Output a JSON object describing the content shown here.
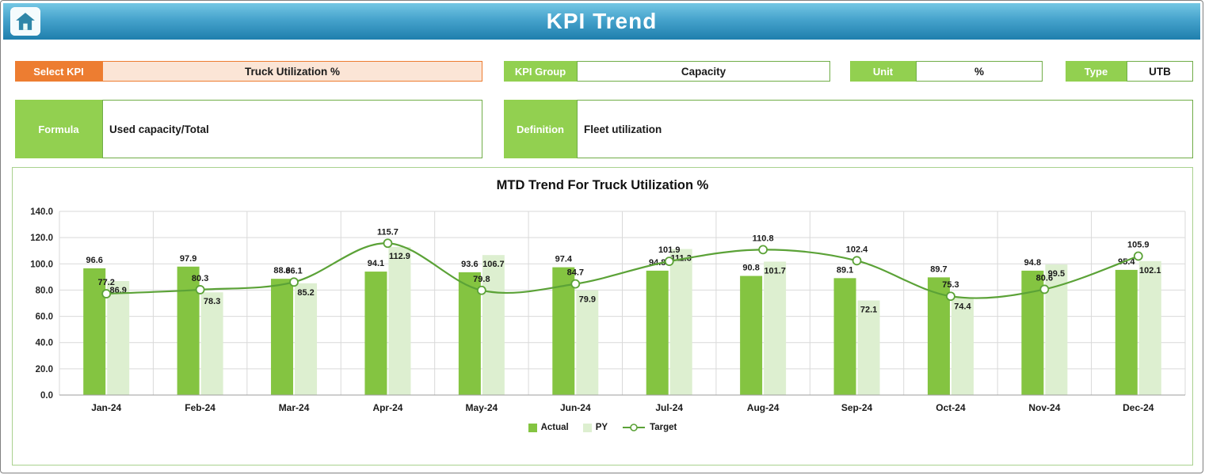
{
  "header": {
    "title": "KPI Trend"
  },
  "fields": {
    "select_kpi": {
      "label": "Select KPI",
      "value": "Truck Utilization %"
    },
    "kpi_group": {
      "label": "KPI Group",
      "value": "Capacity"
    },
    "unit": {
      "label": "Unit",
      "value": "%"
    },
    "type": {
      "label": "Type",
      "value": "UTB"
    },
    "formula": {
      "label": "Formula",
      "value": "Used capacity/Total"
    },
    "definition": {
      "label": "Definition",
      "value": "Fleet utilization"
    }
  },
  "colors": {
    "accent_orange": "#ed7d31",
    "accent_green": "#92d050",
    "header_blue": "#2b88b5"
  },
  "chart_data": {
    "type": "bar",
    "title": "MTD Trend For Truck Utilization %",
    "categories": [
      "Jan-24",
      "Feb-24",
      "Mar-24",
      "Apr-24",
      "May-24",
      "Jun-24",
      "Jul-24",
      "Aug-24",
      "Sep-24",
      "Oct-24",
      "Nov-24",
      "Dec-24"
    ],
    "series": [
      {
        "name": "Actual",
        "type": "bar",
        "color": "#84c441",
        "values": [
          96.6,
          97.9,
          88.6,
          94.1,
          93.6,
          97.4,
          94.8,
          90.8,
          89.1,
          89.7,
          94.8,
          95.4
        ]
      },
      {
        "name": "PY",
        "type": "bar",
        "color": "#ddefd0",
        "values": [
          86.9,
          78.3,
          85.2,
          112.9,
          106.7,
          79.9,
          111.3,
          101.7,
          72.1,
          74.4,
          99.5,
          102.1
        ]
      },
      {
        "name": "Target",
        "type": "line",
        "color": "#5ba237",
        "values": [
          77.2,
          80.3,
          86.1,
          115.7,
          79.8,
          84.7,
          101.9,
          110.8,
          102.4,
          75.3,
          80.6,
          105.9
        ]
      }
    ],
    "ylim": [
      0,
      140
    ],
    "ytick_step": 20,
    "grid": true,
    "legend_position": "bottom"
  }
}
